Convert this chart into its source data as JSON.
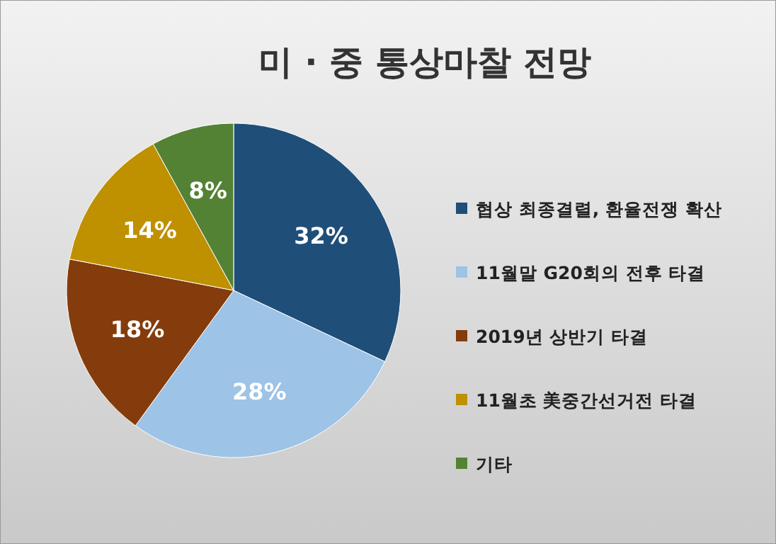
{
  "chart_data": {
    "type": "pie",
    "title": "미 · 중 통상마찰 전망",
    "categories": [
      "협상 최종결렬, 환율전쟁 확산",
      "11월말 G20회의 전후 타결",
      "2019년 상반기 타결",
      "11월초 美중간선거전 타결",
      "기타"
    ],
    "values": [
      32,
      28,
      18,
      14,
      8
    ],
    "colors": [
      "#1f4e79",
      "#9dc3e6",
      "#843c0c",
      "#bf9000",
      "#548235"
    ],
    "value_labels": [
      "32%",
      "28%",
      "18%",
      "14%",
      "8%"
    ],
    "legend": "right"
  }
}
